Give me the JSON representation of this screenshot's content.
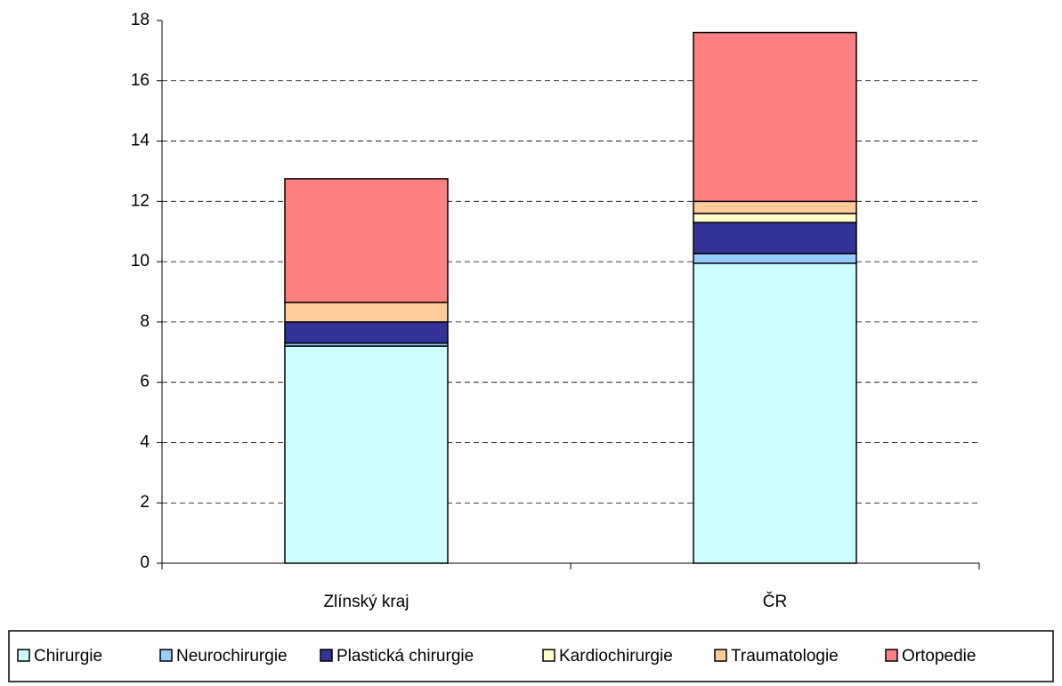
{
  "chart_data": {
    "type": "stacked_bar",
    "categories": [
      "Zlínský kraj",
      "ČR"
    ],
    "series": [
      {
        "name": "Chirurgie",
        "color": "#ccffff",
        "values": [
          7.2,
          9.95
        ]
      },
      {
        "name": "Neurochirurgie",
        "color": "#99ccff",
        "values": [
          0.1,
          0.32
        ]
      },
      {
        "name": "Plastická chirurgie",
        "color": "#333399",
        "values": [
          0.7,
          1.03
        ]
      },
      {
        "name": "Kardiochirurgie",
        "color": "#ffffcc",
        "values": [
          0,
          0.3
        ]
      },
      {
        "name": "Traumatologie",
        "color": "#ffcc99",
        "values": [
          0.65,
          0.4
        ]
      },
      {
        "name": "Ortopedie",
        "color": "#ff8080",
        "values": [
          4.1,
          5.6
        ]
      }
    ],
    "ylim": [
      0,
      18
    ],
    "yticks": [
      0,
      2,
      4,
      6,
      8,
      10,
      12,
      14,
      16,
      18
    ],
    "grid": true
  }
}
